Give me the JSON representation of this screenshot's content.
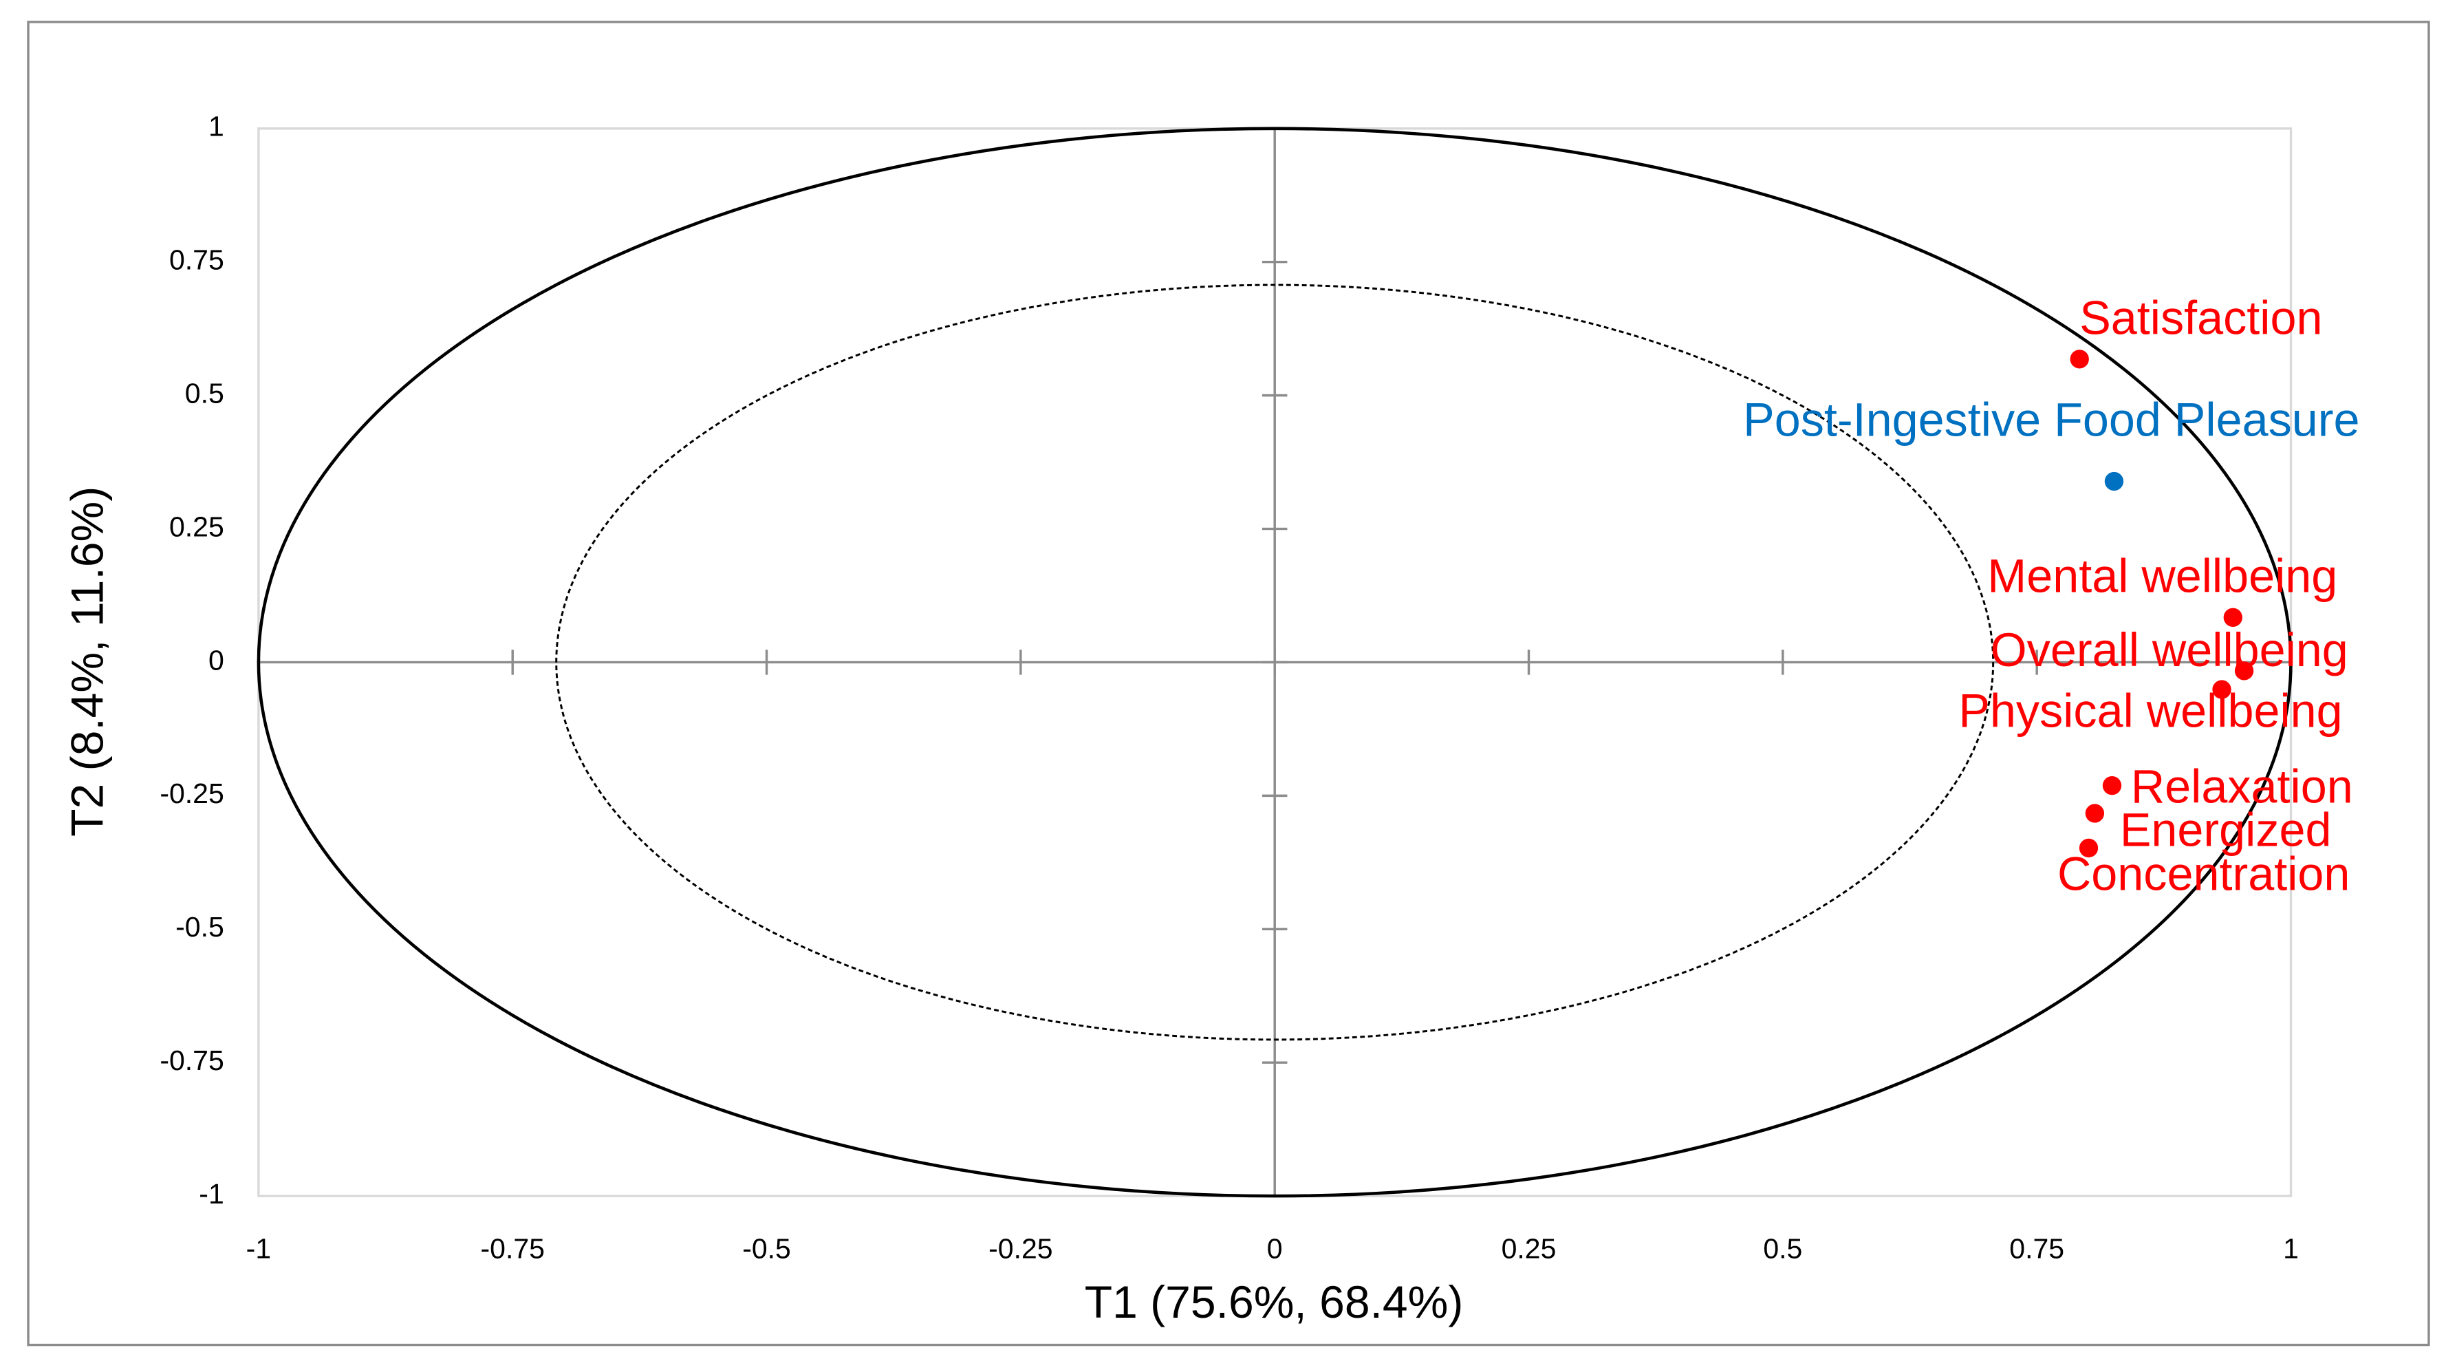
{
  "chart_data": {
    "type": "scatter",
    "xlabel": "T1 (75.6%, 68.4%)",
    "ylabel": "T2 (8.4%, 11.6%)",
    "xlim": [
      -1,
      1
    ],
    "ylim": [
      -1,
      1
    ],
    "xticks": [
      -1,
      -0.75,
      -0.5,
      -0.25,
      0,
      0.25,
      0.5,
      0.75,
      1
    ],
    "yticks": [
      -1,
      -0.75,
      -0.5,
      -0.25,
      0,
      0.25,
      0.5,
      0.75,
      1
    ],
    "circle_radii": [
      1,
      0.707
    ],
    "points": [
      {
        "label": "Satisfaction",
        "x": 0.792,
        "y": 0.568,
        "color": "#ff0000"
      },
      {
        "label": "Post-Ingestive Food Pleasure",
        "x": 0.826,
        "y": 0.339,
        "color": "#0070c0"
      },
      {
        "label": "Mental wellbeing",
        "x": 0.943,
        "y": 0.084,
        "color": "#ff0000"
      },
      {
        "label": "Overall wellbeing",
        "x": 0.954,
        "y": -0.016,
        "color": "#ff0000"
      },
      {
        "label": "Physical wellbeing",
        "x": 0.932,
        "y": -0.051,
        "color": "#ff0000"
      },
      {
        "label": "Relaxation",
        "x": 0.824,
        "y": -0.231,
        "color": "#ff0000"
      },
      {
        "label": "Energized",
        "x": 0.807,
        "y": -0.283,
        "color": "#ff0000"
      },
      {
        "label": "Concentration",
        "x": 0.801,
        "y": -0.348,
        "color": "#ff0000"
      }
    ]
  }
}
